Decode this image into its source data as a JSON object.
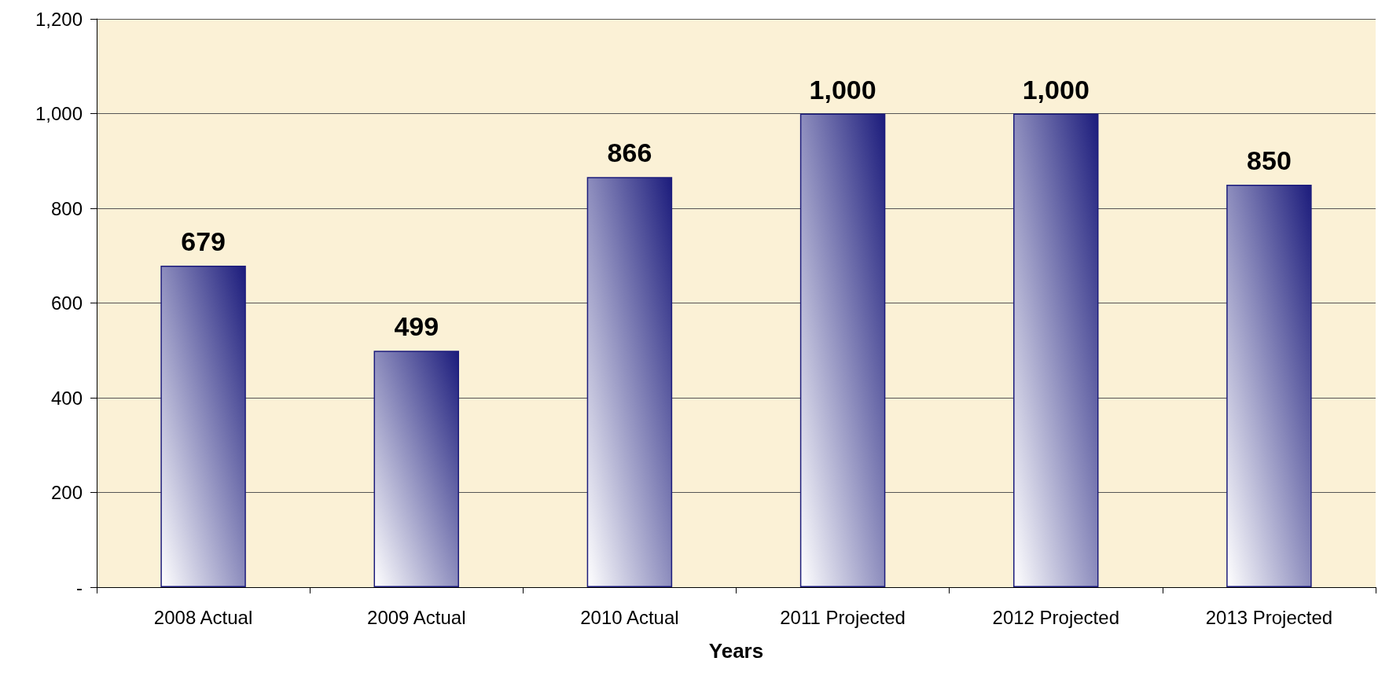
{
  "chart_data": {
    "type": "bar",
    "xlabel": "Years",
    "categories": [
      "2008 Actual",
      "2009 Actual",
      "2010 Actual",
      "2011 Projected",
      "2012 Projected",
      "2013 Projected"
    ],
    "values": [
      679,
      499,
      866,
      1000,
      1000,
      850
    ],
    "value_labels": [
      "679",
      "499",
      "866",
      "1,000",
      "1,000",
      "850"
    ],
    "color": "#1c1c7c",
    "ylim": [
      0,
      1200
    ],
    "yticks": [
      {
        "value": 0,
        "label": "-"
      },
      {
        "value": 200,
        "label": "200"
      },
      {
        "value": 400,
        "label": "400"
      },
      {
        "value": 600,
        "label": "600"
      },
      {
        "value": 800,
        "label": "800"
      },
      {
        "value": 1000,
        "label": "1,000"
      },
      {
        "value": 1200,
        "label": "1,200"
      }
    ],
    "grid": "y"
  }
}
